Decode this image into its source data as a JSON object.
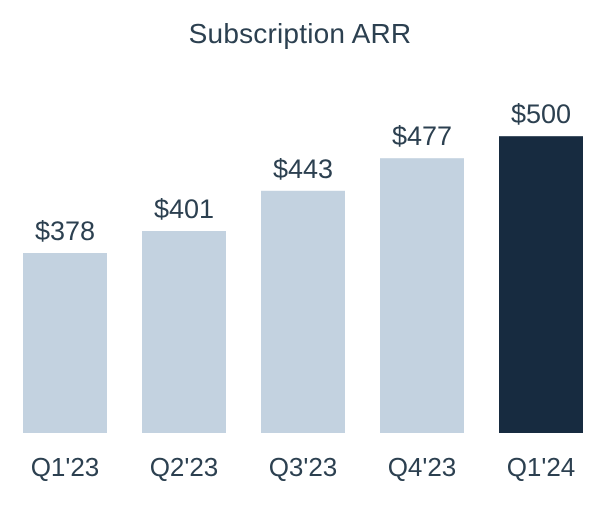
{
  "chart_data": {
    "type": "bar",
    "title": "Subscription ARR",
    "categories": [
      "Q1'23",
      "Q2'23",
      "Q3'23",
      "Q4'23",
      "Q1'24"
    ],
    "values": [
      378,
      401,
      443,
      477,
      500
    ],
    "value_labels": [
      "$378",
      "$401",
      "$443",
      "$477",
      "$500"
    ],
    "xlabel": "",
    "ylabel": "",
    "grid": false,
    "legend": "none",
    "colors": {
      "default_bar": "#c3d2e0",
      "highlight_bar": "#172b40",
      "text": "#2c4050"
    },
    "highlight_index": 4
  }
}
